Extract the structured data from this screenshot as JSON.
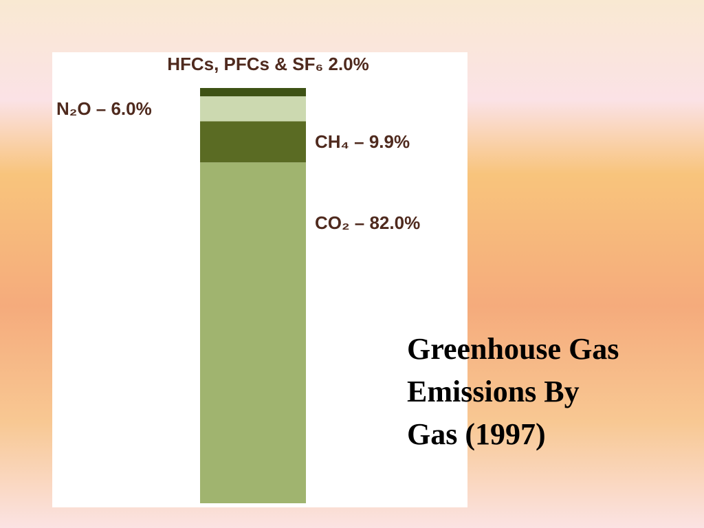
{
  "chart_data": {
    "type": "stacked_bar",
    "title": "Greenhouse Gas Emissions By Gas (1997)",
    "values": [
      82.0,
      9.9,
      6.0,
      2.0
    ],
    "value_labels": [
      "CO₂ – 82.0%",
      "CH₄ – 9.9%",
      "N₂O – 6.0%",
      "HFCs, PFCs & SF₆ 2.0%"
    ],
    "colors": [
      "#a0b46f",
      "#5a6b23",
      "#ccd9b0",
      "#3e5215"
    ]
  }
}
